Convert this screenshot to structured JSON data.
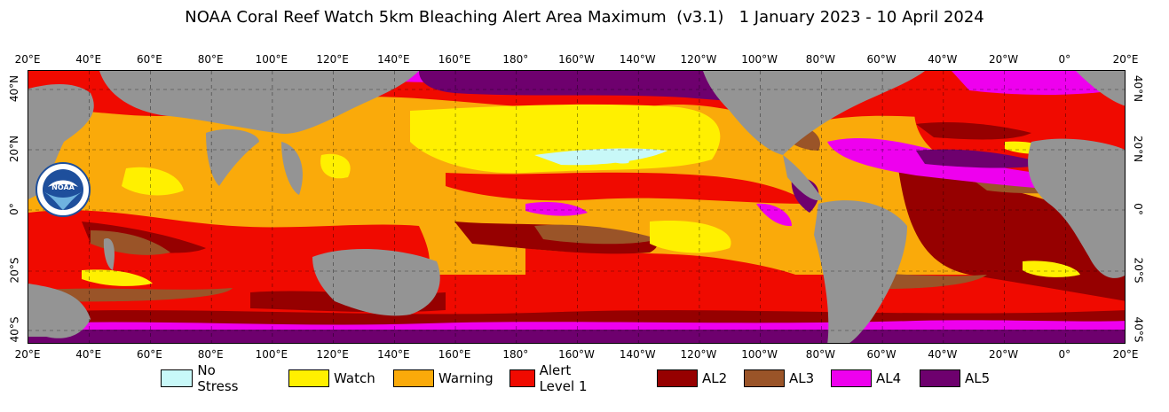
{
  "title": "NOAA Coral Reef Watch 5km Bleaching Alert Area Maximum  (v3.1)   1 January 2023 - 10 April 2024",
  "logo": {
    "name": "noaa-logo",
    "text": "NOAA"
  },
  "lon_labels": [
    "20°E",
    "40°E",
    "60°E",
    "80°E",
    "100°E",
    "120°E",
    "140°E",
    "160°E",
    "180°",
    "160°W",
    "140°W",
    "120°W",
    "100°W",
    "80°W",
    "60°W",
    "40°W",
    "20°W",
    "0°",
    "20°E"
  ],
  "lat_labels_left": [
    "40°N",
    "20°N",
    "0°",
    "20°S",
    "40°S"
  ],
  "lat_labels_right": [
    "40°N",
    "20°N",
    "0°",
    "20°S",
    "40°S"
  ],
  "colors": {
    "land": "#949494",
    "no_stress": "#c8f8f8",
    "watch": "#fff000",
    "warning": "#faaa0a",
    "alert1": "#f00a00",
    "alert2": "#960000",
    "alert3": "#9a5428",
    "alert4": "#ee00ee",
    "alert5": "#6e006e"
  },
  "legend": [
    {
      "label": "No Stress",
      "color": "#c8f8f8"
    },
    {
      "label": "Watch",
      "color": "#fff000"
    },
    {
      "label": "Warning",
      "color": "#faaa0a"
    },
    {
      "label": "Alert Level 1",
      "color": "#f00a00"
    },
    {
      "label": "AL2",
      "color": "#960000"
    },
    {
      "label": "AL3",
      "color": "#9a5428"
    },
    {
      "label": "AL4",
      "color": "#ee00ee"
    },
    {
      "label": "AL5",
      "color": "#6e006e"
    }
  ]
}
